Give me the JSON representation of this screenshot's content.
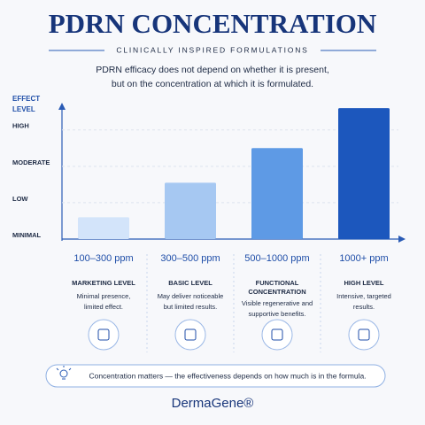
{
  "header": {
    "title": "PDRN CONCENTRATION",
    "subtitle": "CLINICALLY INSPIRED FORMULATIONS",
    "description": [
      "PDRN efficacy does not depend on whether it is present,",
      "but on the concentration at which it is formulated."
    ]
  },
  "chart_data": {
    "type": "bar",
    "y_label": "EFFECT LEVEL",
    "categories": [
      "100–300 ppm",
      "300–500 ppm",
      "500–1000 ppm",
      "1000+ ppm"
    ],
    "values": [
      0.6,
      1.55,
      2.5,
      3.6
    ],
    "colors": [
      "#d3e4fa",
      "#a6c8f2",
      "#5e9ae5",
      "#1c57bd"
    ],
    "ylim": [
      0,
      3.7
    ],
    "yticks": [
      {
        "value": 0,
        "label": "MINIMAL"
      },
      {
        "value": 1,
        "label": "LOW"
      },
      {
        "value": 2,
        "label": "MODERATE"
      },
      {
        "value": 3,
        "label": "HIGH"
      }
    ],
    "grid": true,
    "levels": [
      "MARKETING LEVEL",
      "BASIC LEVEL",
      "FUNCTIONAL CONCENTRATION",
      "HIGH LEVEL"
    ],
    "descriptions": [
      "Minimal presence, limited effect.",
      "May deliver noticeable but limited results.",
      "Visible regenerative and supportive benefits.",
      "Intensive, targeted results."
    ]
  },
  "footer": {
    "note": "Concentration matters — the effectiveness depends on how much is in the formula.",
    "brand": "DermaGene®"
  }
}
